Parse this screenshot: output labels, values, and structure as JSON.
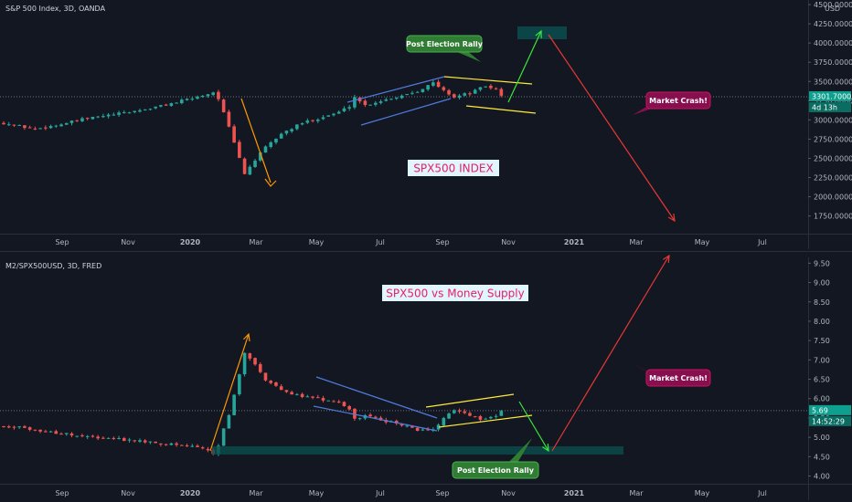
{
  "chart_data": [
    {
      "type": "candlestick",
      "header": "S&P 500 Index, 3D, OANDA",
      "currency": "USD",
      "last_price": "3301.7000",
      "countdown": "4d 13h",
      "y_axis_ticks": [
        "4500.0000",
        "4250.0000",
        "4000.0000",
        "3750.0000",
        "3500.0000",
        "3250.0000",
        "3000.0000",
        "2750.0000",
        "2500.0000",
        "2250.0000",
        "2000.0000",
        "1750.0000"
      ],
      "ylim": [
        1520,
        4560
      ],
      "price_line": 3301.7,
      "x_axis_labels": [
        {
          "label": "Sep",
          "bold": false
        },
        {
          "label": "Nov",
          "bold": false
        },
        {
          "label": "2020",
          "bold": true
        },
        {
          "label": "Mar",
          "bold": false
        },
        {
          "label": "May",
          "bold": false
        },
        {
          "label": "Jul",
          "bold": false
        },
        {
          "label": "Sep",
          "bold": false
        },
        {
          "label": "Nov",
          "bold": false
        },
        {
          "label": "2021",
          "bold": true
        },
        {
          "label": "Mar",
          "bold": false
        },
        {
          "label": "May",
          "bold": false
        },
        {
          "label": "Jul",
          "bold": false
        }
      ],
      "center_label": "SPX500 INDEX",
      "callouts": [
        {
          "text": "Post Election Rally",
          "color": "#2e7d32"
        },
        {
          "text": "Market Crash!",
          "color": "#880e4f"
        }
      ],
      "series_anchors": [
        [
          0,
          2960
        ],
        [
          6,
          2880
        ],
        [
          10,
          2930
        ],
        [
          16,
          3020
        ],
        [
          22,
          3080
        ],
        [
          28,
          3150
        ],
        [
          33,
          3230
        ],
        [
          37,
          3300
        ],
        [
          40,
          3360
        ],
        [
          41,
          3280
        ],
        [
          43,
          2900
        ],
        [
          45,
          2500
        ],
        [
          46,
          2300
        ],
        [
          48,
          2480
        ],
        [
          50,
          2640
        ],
        [
          53,
          2820
        ],
        [
          57,
          2960
        ],
        [
          60,
          3020
        ],
        [
          64,
          3100
        ],
        [
          66,
          3180
        ],
        [
          67,
          3300
        ],
        [
          69,
          3190
        ],
        [
          72,
          3250
        ],
        [
          75,
          3300
        ],
        [
          79,
          3380
        ],
        [
          82,
          3480
        ],
        [
          84,
          3380
        ],
        [
          86,
          3300
        ],
        [
          89,
          3350
        ],
        [
          92,
          3440
        ],
        [
          94,
          3400
        ],
        [
          95,
          3310
        ]
      ]
    },
    {
      "type": "candlestick",
      "header": "M2/SPX500USD, 3D, FRED",
      "last_price": "5.69",
      "countdown": "14:52:29",
      "y_axis_ticks": [
        "9.50",
        "9.00",
        "8.50",
        "8.00",
        "7.50",
        "7.00",
        "6.50",
        "6.00",
        "5.50",
        "5.00",
        "4.50",
        "4.00"
      ],
      "ylim": [
        3.8,
        9.65
      ],
      "price_line": 5.69,
      "x_axis_labels": [
        {
          "label": "Sep",
          "bold": false
        },
        {
          "label": "Nov",
          "bold": false
        },
        {
          "label": "2020",
          "bold": true
        },
        {
          "label": "Mar",
          "bold": false
        },
        {
          "label": "May",
          "bold": false
        },
        {
          "label": "Jul",
          "bold": false
        },
        {
          "label": "Sep",
          "bold": false
        },
        {
          "label": "Nov",
          "bold": false
        },
        {
          "label": "2021",
          "bold": true
        },
        {
          "label": "Mar",
          "bold": false
        },
        {
          "label": "May",
          "bold": false
        },
        {
          "label": "Jul",
          "bold": false
        }
      ],
      "center_label": "SPX500 vs Money Supply",
      "callouts": [
        {
          "text": "Market Crash!",
          "color": "#880e4f"
        },
        {
          "text": "Post Election Rally",
          "color": "#2e7d32"
        }
      ],
      "series_anchors": [
        [
          0,
          5.3
        ],
        [
          6,
          5.2
        ],
        [
          10,
          5.12
        ],
        [
          16,
          5.0
        ],
        [
          22,
          4.95
        ],
        [
          28,
          4.88
        ],
        [
          33,
          4.8
        ],
        [
          37,
          4.75
        ],
        [
          40,
          4.6
        ],
        [
          41,
          4.8
        ],
        [
          43,
          5.6
        ],
        [
          45,
          6.6
        ],
        [
          46,
          7.2
        ],
        [
          48,
          6.9
        ],
        [
          50,
          6.5
        ],
        [
          53,
          6.2
        ],
        [
          57,
          6.05
        ],
        [
          60,
          6.0
        ],
        [
          64,
          5.9
        ],
        [
          66,
          5.7
        ],
        [
          67,
          5.5
        ],
        [
          69,
          5.55
        ],
        [
          72,
          5.45
        ],
        [
          75,
          5.35
        ],
        [
          79,
          5.2
        ],
        [
          82,
          5.18
        ],
        [
          84,
          5.5
        ],
        [
          86,
          5.7
        ],
        [
          89,
          5.55
        ],
        [
          92,
          5.45
        ],
        [
          94,
          5.55
        ],
        [
          95,
          5.69
        ]
      ]
    }
  ]
}
